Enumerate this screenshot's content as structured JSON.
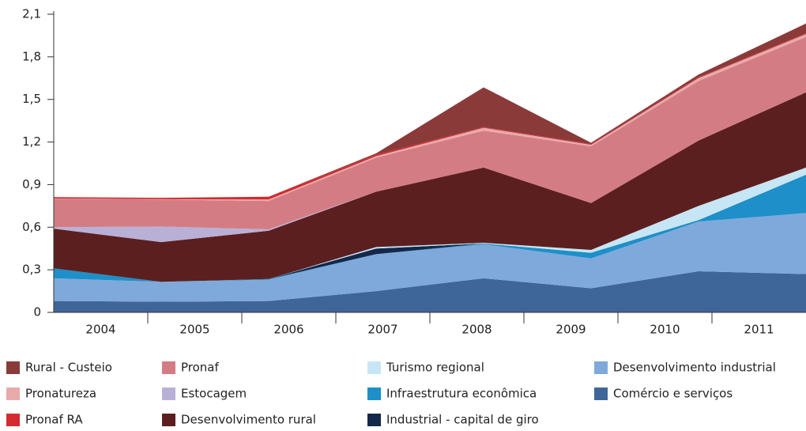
{
  "chart_data": {
    "type": "stacked_area",
    "categories": [
      "2004",
      "2005",
      "2006",
      "2007",
      "2008",
      "2009",
      "2010",
      "2011"
    ],
    "ylim": [
      0,
      2.1
    ],
    "yticks": [
      0,
      {
        "value": 0.3,
        "label": "0,3"
      },
      {
        "value": 0.6,
        "label": "0,6"
      },
      {
        "value": 0.9,
        "label": "0,9"
      },
      {
        "value": 1.2,
        "label": "1,2"
      },
      {
        "value": 1.5,
        "label": "1,5"
      },
      {
        "value": 1.8,
        "label": "1,8"
      },
      {
        "value": 2.1,
        "label": "2,1"
      }
    ],
    "series": [
      {
        "name": "Rural - Custeio",
        "color": "#8b3a3a",
        "values": [
          0,
          0,
          0,
          0.01,
          0.28,
          0.01,
          0.02,
          0.07
        ]
      },
      {
        "name": "Pronatureza",
        "color": "#e8aaaa",
        "values": [
          0.002,
          0.002,
          0.01,
          0.01,
          0.02,
          0.01,
          0.02,
          0.02
        ]
      },
      {
        "name": "Pronaf RA",
        "color": "#d42a30",
        "values": [
          0.01,
          0.01,
          0.02,
          0.01,
          0.005,
          0.005,
          0.005,
          0.005
        ]
      },
      {
        "name": "Pronaf",
        "color": "#d47c84",
        "values": [
          0.2,
          0.19,
          0.2,
          0.24,
          0.26,
          0.4,
          0.42,
          0.39
        ]
      },
      {
        "name": "Estocagem",
        "color": "#b9b0d6",
        "values": [
          0.01,
          0.11,
          0.01,
          0,
          0,
          0,
          0,
          0
        ]
      },
      {
        "name": "Desenvolvimento rural",
        "color": "#5c1f1f",
        "values": [
          0.28,
          0.28,
          0.34,
          0.39,
          0.53,
          0.33,
          0.46,
          0.53
        ]
      },
      {
        "name": "Turismo regional",
        "color": "#c6e6f5",
        "values": [
          0,
          0,
          0,
          0.01,
          0.005,
          0.02,
          0.1,
          0.05
        ]
      },
      {
        "name": "Infraestrutura econômica",
        "color": "#1e8fc8",
        "values": [
          0.07,
          0,
          0.005,
          0,
          0.005,
          0.04,
          0.01,
          0.27
        ]
      },
      {
        "name": "Industrial - capital de giro",
        "color": "#13284a",
        "values": [
          0,
          0,
          0,
          0.04,
          0,
          0,
          0,
          0
        ]
      },
      {
        "name": "Desenvolvimento industrial",
        "color": "#7fa9db",
        "values": [
          0.16,
          0.14,
          0.15,
          0.26,
          0.24,
          0.21,
          0.35,
          0.43
        ]
      },
      {
        "name": "Comércio e serviços",
        "color": "#3f6699",
        "values": [
          0.08,
          0.075,
          0.08,
          0.15,
          0.24,
          0.17,
          0.29,
          0.27
        ]
      }
    ]
  }
}
